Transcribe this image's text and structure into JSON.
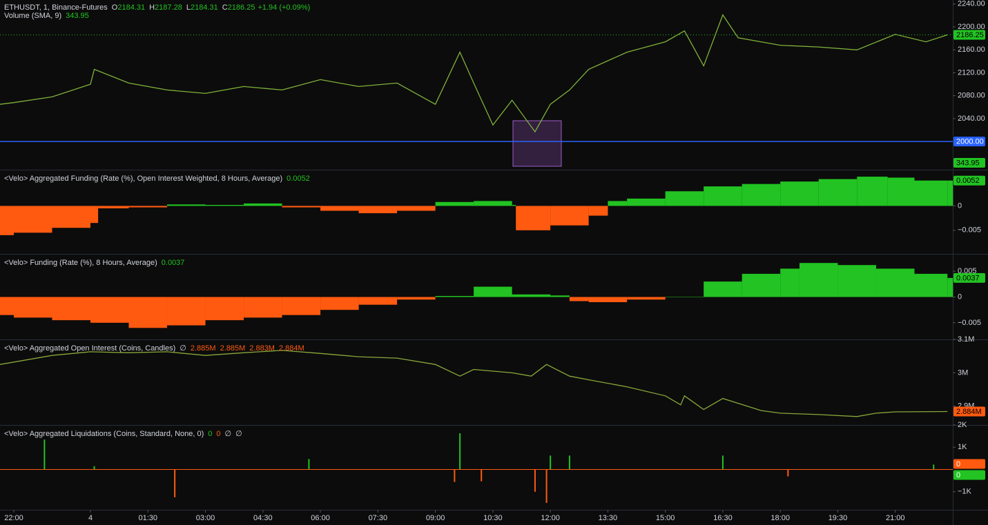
{
  "chart_data": [
    {
      "type": "line",
      "title": "ETHUSDT, 1, Binance-Futures",
      "ohlc": [
        {
          "label": "O",
          "value": 2184.31
        },
        {
          "label": "H",
          "value": 2187.28
        },
        {
          "label": "L",
          "value": 2184.31
        },
        {
          "label": "C",
          "value": 2186.25
        }
      ],
      "change": "+1.94 (+0.09%)",
      "indicator": "Volume (SMA, 9)",
      "indicator_value": 343.95,
      "color": "#7fb23a",
      "label_color": "#22c322",
      "x": [
        -0.36,
        0,
        1,
        2,
        2.1,
        3,
        4,
        5,
        6,
        7,
        8,
        9,
        10,
        11,
        11.64,
        12,
        12.5,
        13,
        13.6,
        14,
        14.5,
        15,
        16,
        17,
        17.5,
        18,
        18.5,
        18.9,
        20,
        21,
        22,
        23,
        23.8,
        24.36
      ],
      "values": [
        2065,
        2068,
        2078,
        2100,
        2126,
        2102,
        2090,
        2084,
        2096,
        2090,
        2108,
        2096,
        2102,
        2065,
        2156,
        2102,
        2029,
        2072,
        2017,
        2065,
        2090,
        2126,
        2156,
        2174,
        2193,
        2132,
        2221,
        2181,
        2168,
        2165,
        2160,
        2187,
        2174,
        2186.25
      ],
      "xlim": [
        -0.36,
        24.5
      ],
      "ylim": [
        1952,
        2247
      ],
      "yticks": [
        {
          "value": 2040,
          "label": "2040.00"
        },
        {
          "value": 2080,
          "label": "2080.00"
        },
        {
          "value": 2120,
          "label": "2120.00"
        },
        {
          "value": 2160,
          "label": "2160.00"
        },
        {
          "value": 2200,
          "label": "2200.00"
        },
        {
          "value": 2240,
          "label": "2240.00"
        }
      ],
      "hline": {
        "value": 2000,
        "label": "2000.00",
        "color": "#2962ff"
      },
      "last": {
        "value": 2186.25,
        "label": "2186.25"
      }
    },
    {
      "type": "bar",
      "title": "<Velo> Aggregated Funding (Rate (%), Open Interest Weighted, 8 Hours, Average)",
      "last": 0.0052,
      "up_color": "#22c322",
      "down_color": "#ff5a10",
      "x": [
        -0.36,
        0,
        1,
        2,
        2.2,
        3,
        4,
        5,
        6,
        7,
        8,
        9,
        10,
        11,
        12,
        13,
        13.1,
        14,
        15,
        15.5,
        16,
        17,
        18,
        19,
        20,
        21,
        22,
        22.8,
        23.5,
        24.36
      ],
      "values": [
        -0.006,
        -0.0055,
        -0.0045,
        -0.0035,
        -0.0005,
        -0.0003,
        0.0003,
        0.0002,
        0.0005,
        -0.0003,
        -0.001,
        -0.0015,
        -0.001,
        0.0008,
        0.001,
        0.0002,
        -0.005,
        -0.004,
        -0.002,
        0.001,
        0.0015,
        0.003,
        0.004,
        0.0045,
        0.005,
        0.0055,
        0.006,
        0.0058,
        0.0052,
        0.0052
      ],
      "xlim": [
        -0.36,
        24.5
      ],
      "ylim": [
        -0.0097,
        0.00714
      ],
      "yticks": [
        0,
        {
          "value": -0.005,
          "label": "−0.005"
        }
      ]
    },
    {
      "type": "bar",
      "title": "<Velo> Funding (Rate (%), 8 Hours, Average)",
      "last": 0.0037,
      "up_color": "#22c322",
      "down_color": "#ff5a10",
      "x": [
        -0.36,
        0,
        1,
        2,
        3,
        4,
        5,
        6,
        7,
        8,
        9,
        10,
        11,
        12,
        13,
        14,
        14.5,
        15,
        16,
        17,
        18,
        19,
        20,
        20.5,
        21.5,
        22.5,
        23.5,
        24.36
      ],
      "values": [
        -0.0035,
        -0.004,
        -0.0045,
        -0.005,
        -0.006,
        -0.0055,
        -0.0045,
        -0.004,
        -0.0035,
        -0.0025,
        -0.0015,
        -0.0005,
        0.0002,
        0.002,
        0.0005,
        0.0003,
        -0.0008,
        -0.001,
        -0.0005,
        0,
        0.003,
        0.0045,
        0.0055,
        0.0066,
        0.0062,
        0.0055,
        0.0045,
        0.0037
      ],
      "xlim": [
        -0.36,
        24.5
      ],
      "ylim": [
        -0.0081,
        0.0081
      ],
      "yticks": [
        0.005,
        0,
        {
          "value": -0.005,
          "label": "−0.005"
        }
      ]
    },
    {
      "type": "line",
      "title": "<Velo> Aggregated Open Interest (Coins, Candles)",
      "legend_symbol": "∅",
      "legend": [
        {
          "value": 2885000,
          "label": "2.885M"
        },
        {
          "value": 2885000,
          "label": "2.885M"
        },
        {
          "value": 2883000,
          "label": "2.883M"
        },
        {
          "value": 2884000,
          "label": "2.884M"
        }
      ],
      "color": "#8aa83a",
      "label_color": "#ff5a10",
      "x": [
        -0.36,
        1,
        2,
        3,
        4,
        5,
        6,
        7,
        8,
        9,
        10,
        11,
        11.64,
        12,
        13,
        13.5,
        13.9,
        14.5,
        15,
        16,
        17,
        17.4,
        17.5,
        18,
        18.5,
        19.5,
        20,
        21,
        22,
        22.5,
        23,
        24.36
      ],
      "values": [
        3025000,
        3052000,
        3063000,
        3060000,
        3063000,
        3052000,
        3060000,
        3067000,
        3058000,
        3048000,
        3044000,
        3025000,
        2990000,
        3010000,
        3000000,
        2990000,
        3025000,
        2990000,
        2979000,
        2958000,
        2931000,
        2904000,
        2931000,
        2890000,
        2923000,
        2887000,
        2879000,
        2875000,
        2869000,
        2879000,
        2883000,
        2884000
      ],
      "xlim": [
        -0.36,
        24.5
      ],
      "ylim": [
        2845800,
        3095800
      ],
      "yticks": [
        {
          "value": 3100000,
          "label": "3.1M"
        },
        {
          "value": 3000000,
          "label": "3M"
        },
        {
          "value": 2900000,
          "label": "2.9M"
        }
      ],
      "last": {
        "value": 2884000,
        "label": "2.884M"
      }
    },
    {
      "type": "bar",
      "title": "<Velo> Aggregated Liquidations (Coins, Standard, None, 0)",
      "legend_values": [
        0,
        0,
        "∅",
        "∅"
      ],
      "legend_colors": [
        "#22c322",
        "#ff5a10",
        "#d1d4dc",
        "#d1d4dc"
      ],
      "up_color": "#22c322",
      "down_color": "#ff5a10",
      "x": [
        0.8,
        2.1,
        4.2,
        7.7,
        11.5,
        11.64,
        12.2,
        13.6,
        13.9,
        14,
        14.5,
        18.5,
        20.2,
        24
      ],
      "values": [
        1344,
        150,
        -1250,
        470,
        -560,
        1625,
        -530,
        -1000,
        -1500,
        625,
        625,
        625,
        -312,
        220
      ],
      "xlim": [
        -0.36,
        24.5
      ],
      "ylim": [
        -1812.5,
        1937.5
      ],
      "yticks": [
        {
          "value": 2000,
          "label": "2K"
        },
        {
          "value": 1000,
          "label": "1K"
        },
        {
          "value": -1000,
          "label": "−1K"
        }
      ],
      "last_values": [
        0,
        0
      ],
      "last_colors": [
        "#ff5a10",
        "#22c322"
      ],
      "xticks": [
        {
          "value": 0,
          "label": "22:00"
        },
        {
          "value": 2,
          "label": "4"
        },
        {
          "value": 3.5,
          "label": "01:30"
        },
        {
          "value": 5,
          "label": "03:00"
        },
        {
          "value": 6.5,
          "label": "04:30"
        },
        {
          "value": 8,
          "label": "06:00"
        },
        {
          "value": 9.5,
          "label": "07:30"
        },
        {
          "value": 11,
          "label": "09:00"
        },
        {
          "value": 12.5,
          "label": "10:30"
        },
        {
          "value": 14,
          "label": "12:00"
        },
        {
          "value": 15.5,
          "label": "13:30"
        },
        {
          "value": 17,
          "label": "15:00"
        },
        {
          "value": 18.5,
          "label": "16:30"
        },
        {
          "value": 20,
          "label": "18:00"
        },
        {
          "value": 21.5,
          "label": "19:30"
        },
        {
          "value": 23,
          "label": "21:00"
        }
      ]
    }
  ]
}
